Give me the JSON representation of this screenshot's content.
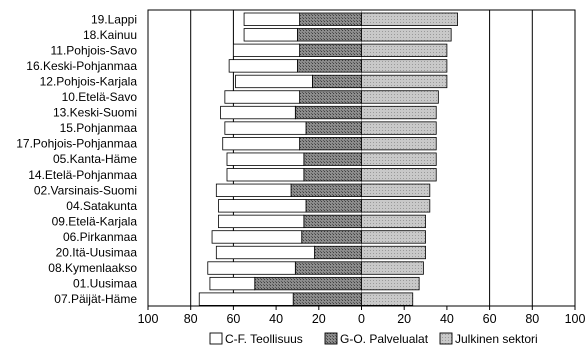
{
  "chart_data": {
    "type": "bar",
    "orientation": "horizontal",
    "stacking": "left: C-F and G-O stacked leftwards from 0; right: Julkinen sektori",
    "xlim": [
      -100,
      100
    ],
    "x_ticks": [
      100,
      80,
      60,
      40,
      20,
      0,
      20,
      40,
      60,
      80,
      100
    ],
    "grid": "vertical lines at 80 and 60 on both sides",
    "legend_position": "bottom",
    "categories": [
      "19.Lappi",
      "18.Kainuu",
      "11.Pohjois-Savo",
      "16.Keski-Pohjanmaa",
      "12.Pohjois-Karjala",
      "10.Etelä-Savo",
      "13.Keski-Suomi",
      "15.Pohjanmaa",
      "17.Pohjois-Pohjanmaa",
      "05.Kanta-Häme",
      "14.Etelä-Pohjanmaa",
      "02.Varsinais-Suomi",
      "04.Satakunta",
      "09.Etelä-Karjala",
      "06.Pirkanmaa",
      "20.Itä-Uusimaa",
      "08.Kymenlaakso",
      "01.Uusimaa",
      "07.Päijät-Häme"
    ],
    "series": [
      {
        "name": "C-F. Teollisuus",
        "values": [
          26,
          25,
          31,
          32,
          36,
          35,
          35,
          38,
          36,
          36,
          36,
          35,
          41,
          40,
          42,
          46,
          41,
          21,
          44
        ]
      },
      {
        "name": "G-O. Palvelualat",
        "values": [
          29,
          30,
          29,
          30,
          23,
          29,
          31,
          26,
          29,
          27,
          27,
          33,
          26,
          27,
          28,
          22,
          31,
          50,
          32
        ]
      },
      {
        "name": "Julkinen sektori",
        "values": [
          45,
          42,
          40,
          40,
          40,
          36,
          35,
          35,
          35,
          35,
          35,
          32,
          32,
          30,
          30,
          30,
          29,
          27,
          24
        ]
      }
    ]
  }
}
